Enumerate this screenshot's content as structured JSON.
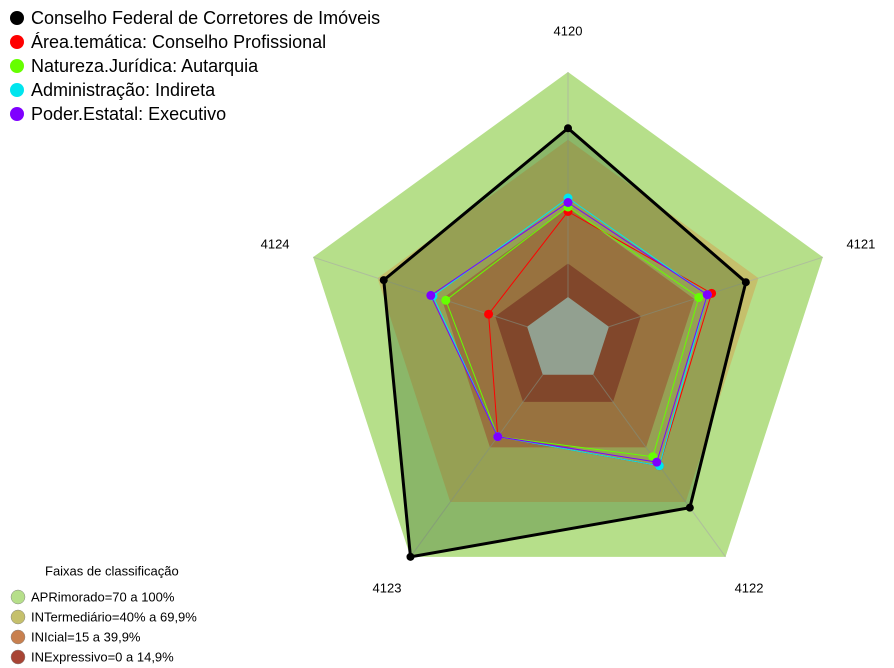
{
  "chart_data": {
    "type": "radar",
    "axes": [
      "4120",
      "4121",
      "4122",
      "4123",
      "4124"
    ],
    "rlim": [
      0,
      100
    ],
    "series": [
      {
        "name": "Conselho Federal de Corretores de Imóveis",
        "color": "#000000",
        "values": [
          75,
          64,
          73,
          100,
          67
        ]
      },
      {
        "name": "Área.temática: Conselho Profissional",
        "color": "#ff0000",
        "values": [
          38,
          48,
          50,
          34,
          18
        ]
      },
      {
        "name": "Natureza.Jurídica: Autarquia",
        "color": "#66ff00",
        "values": [
          40,
          42,
          45,
          34,
          38
        ]
      },
      {
        "name": "Administração: Indireta",
        "color": "#00e5ee",
        "values": [
          44,
          46,
          50,
          34,
          44
        ]
      },
      {
        "name": "Poder.Estatal: Executivo",
        "color": "#7f00ff",
        "values": [
          42,
          46,
          48,
          34,
          45
        ]
      }
    ],
    "bands_title": "Faixas de classificação",
    "bands": [
      {
        "label": "APRimorado=70 a 100%",
        "from": 70,
        "to": 100,
        "color": "#b6df8a"
      },
      {
        "label": "INTermediário=40% a 69,9%",
        "from": 40,
        "to": 69.9,
        "color": "#c5c06c"
      },
      {
        "label": "INIcial=15 a 39,9%",
        "from": 15,
        "to": 39.9,
        "color": "#c8804f"
      },
      {
        "label": "INExpressivo=0 a 14,9%",
        "from": 0,
        "to": 14.9,
        "color": "#a84434"
      }
    ]
  }
}
